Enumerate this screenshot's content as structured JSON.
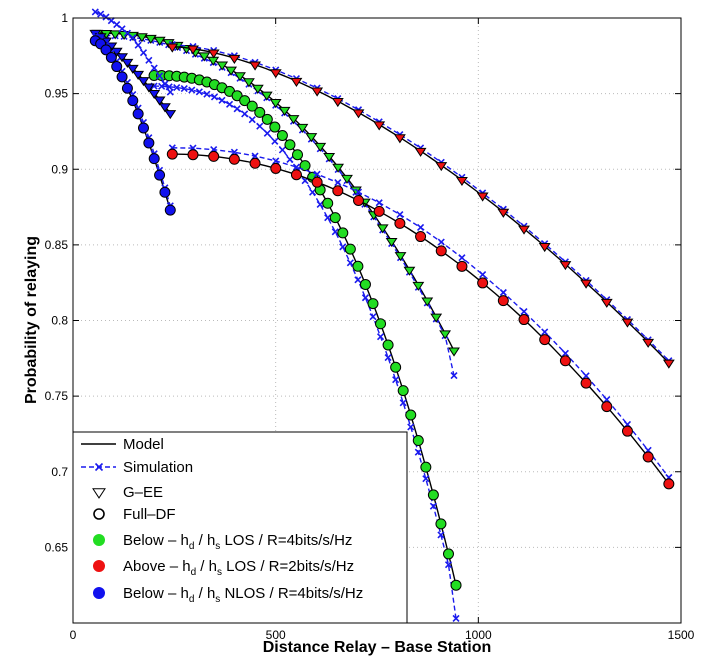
{
  "chart_data": {
    "type": "line",
    "xlabel": "Distance Relay – Base Station",
    "ylabel": "Probability of relaying",
    "xlim": [
      0,
      1500
    ],
    "ylim": [
      0.6,
      1.0
    ],
    "xticks": [
      0,
      500,
      1000,
      1500
    ],
    "xtick_labels": [
      "0",
      "500",
      "1000",
      "1500"
    ],
    "yticks": [
      0.65,
      0.7,
      0.75,
      0.8,
      0.85,
      0.9,
      0.95,
      1.0
    ],
    "ytick_labels": [
      "0.65",
      "0.7",
      "0.75",
      "0.8",
      "0.85",
      "0.9",
      "0.95",
      "1"
    ],
    "grid": true,
    "legend_position": "bottom-left",
    "legend": [
      {
        "key": "model",
        "label": "Model"
      },
      {
        "key": "simulation",
        "label": "Simulation"
      },
      {
        "key": "gee",
        "label": "G–EE"
      },
      {
        "key": "fulldf",
        "label": "Full–DF"
      },
      {
        "key": "green",
        "pre": "Below – h",
        "sub1": "d",
        "mid": " / h",
        "sub2": "s",
        "post": " LOS / R=4bits/s/Hz"
      },
      {
        "key": "red",
        "pre": "Above – h",
        "sub1": "d",
        "mid": " / h",
        "sub2": "s",
        "post": " LOS / R=2bits/s/Hz"
      },
      {
        "key": "blue",
        "pre": "Below – h",
        "sub1": "d",
        "mid": " / h",
        "sub2": "s",
        "post": " NLOS / R=4bits/s/Hz"
      }
    ],
    "colors": {
      "green": "#22dd22",
      "red": "#ee1111",
      "blue": "#1111ee",
      "sim": "#1a1aee",
      "model": "#000000"
    },
    "series": [
      {
        "name": "Below – hd / hs LOS G-EE",
        "marker": "triangle",
        "fill": "green",
        "x_range": [
          60,
          940
        ],
        "y_start": 0.99,
        "y_end": 0.78,
        "p": 2.2,
        "n_markers": 40,
        "sim_offset": -0.002
      },
      {
        "name": "Below – hd / hs LOS Full-DF",
        "marker": "circle",
        "fill": "green",
        "x_range": [
          200,
          945
        ],
        "y_start": 0.962,
        "y_end": 0.625,
        "p": 2.5,
        "n_markers": 40,
        "sim_offset": -0.01
      },
      {
        "name": "Above – hd / hs LOS G-EE",
        "marker": "triangle",
        "fill": "red",
        "x_range": [
          245,
          1470
        ],
        "y_start": 0.981,
        "y_end": 0.772,
        "p": 1.6,
        "n_markers": 24,
        "sim_offset": 0.002
      },
      {
        "name": "Above – hd / hs LOS Full-DF",
        "marker": "circle",
        "fill": "red",
        "x_range": [
          245,
          1470
        ],
        "y_start": 0.91,
        "y_end": 0.692,
        "p": 2.0,
        "n_markers": 24,
        "sim_offset": 0.006
      },
      {
        "name": "Below – hd / hs NLOS G-EE",
        "marker": "triangle",
        "fill": "blue",
        "x_range": [
          55,
          240
        ],
        "y_start": 0.99,
        "y_end": 0.937,
        "p": 1.2,
        "n_markers": 14,
        "sim_offset": 0.02
      },
      {
        "name": "Below – hd / hs NLOS Full-DF",
        "marker": "circle",
        "fill": "blue",
        "x_range": [
          55,
          240
        ],
        "y_start": 0.985,
        "y_end": 0.873,
        "p": 1.5,
        "n_markers": 14,
        "sim_offset": 0.004
      }
    ]
  }
}
